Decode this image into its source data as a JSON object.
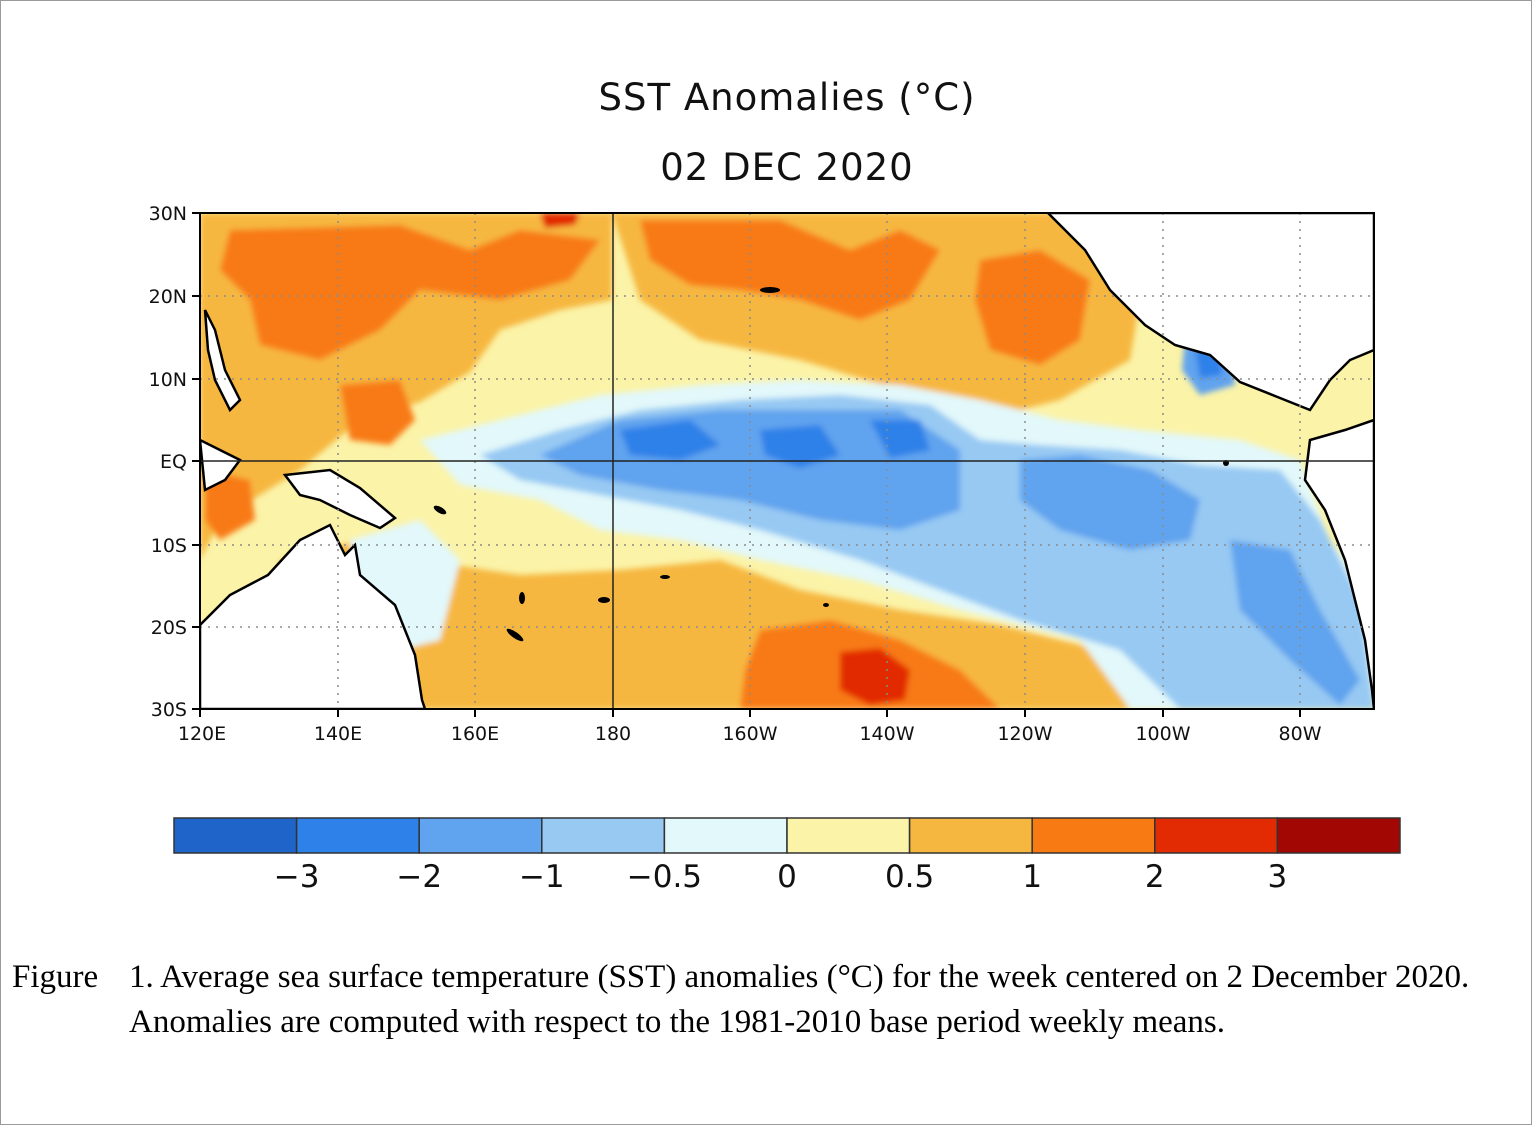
{
  "title": "SST Anomalies (°C)",
  "subtitle": "02 DEC 2020",
  "map": {
    "lat_labels": [
      "30N",
      "20N",
      "10N",
      "EQ",
      "10S",
      "20S",
      "30S"
    ],
    "lon_labels": [
      "120E",
      "140E",
      "160E",
      "180",
      "160W",
      "140W",
      "120W",
      "100W",
      "80W"
    ],
    "colors": {
      "land": "#ffffff",
      "coast": "#000000",
      "grid": "#8c8c8c"
    }
  },
  "colorbar": {
    "colors": [
      "#1f65c9",
      "#2d81e8",
      "#60a3ee",
      "#97c9f3",
      "#e2f8fa",
      "#fbf3a8",
      "#f6b740",
      "#f87a13",
      "#e22b03",
      "#a30703"
    ],
    "labels": [
      "−3",
      "−2",
      "−1",
      "−0.5",
      "0",
      "0.5",
      "1",
      "2",
      "3"
    ]
  },
  "caption": {
    "label": "Figure",
    "text": "1. Average sea surface temperature (SST) anomalies (°C) for the week centered on 2 December 2020. Anomalies are computed with respect to the 1981-2010 base period weekly means."
  }
}
